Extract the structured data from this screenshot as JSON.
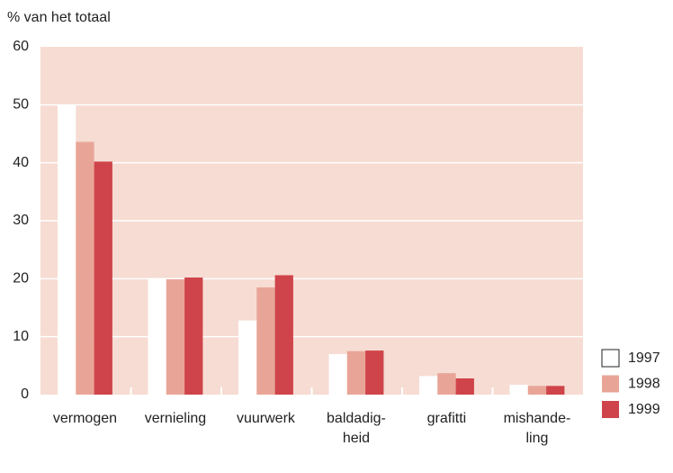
{
  "chart_data": {
    "type": "bar",
    "y_axis_label": "% van het totaal",
    "categories": [
      "vermogen",
      "vernieling",
      "vuurwerk",
      "baldadig-\nheid",
      "grafitti",
      "mishande-\nling"
    ],
    "series": [
      {
        "name": "1997",
        "color": "#ffffff",
        "values": [
          50,
          20.1,
          12.8,
          7.0,
          3.2,
          1.7
        ]
      },
      {
        "name": "1998",
        "color": "#e8a597",
        "values": [
          43.6,
          19.9,
          18.5,
          7.5,
          3.7,
          1.5
        ]
      },
      {
        "name": "1999",
        "color": "#cf444a",
        "values": [
          40.2,
          20.2,
          20.6,
          7.6,
          2.8,
          1.5
        ]
      }
    ],
    "ylim": [
      0,
      60
    ],
    "yticks": [
      0,
      10,
      20,
      30,
      40,
      50,
      60
    ],
    "grid": true
  }
}
